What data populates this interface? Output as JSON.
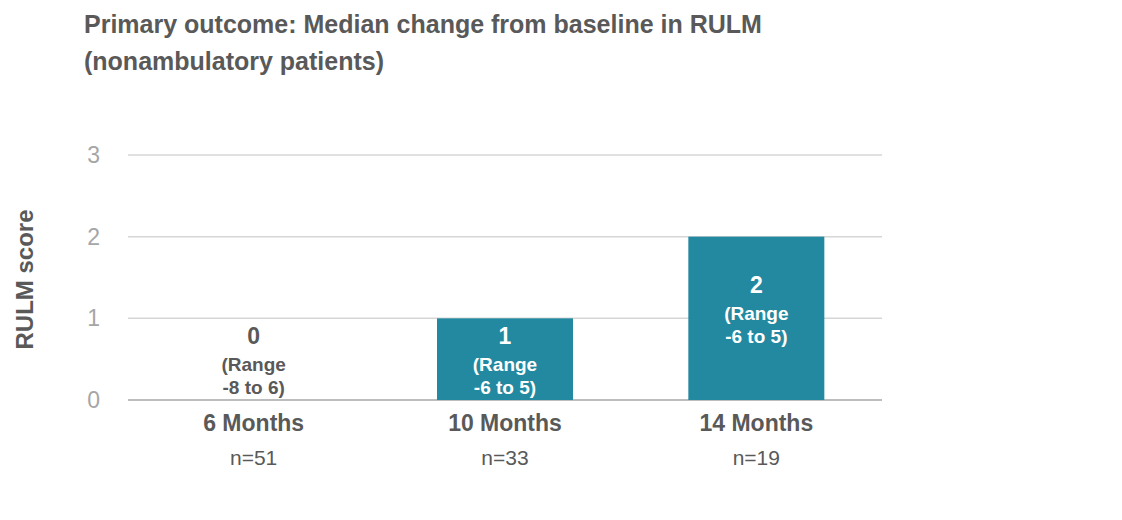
{
  "chart_data": {
    "type": "bar",
    "title": "Primary outcome: Median change from baseline in RULM",
    "subtitle": "(nonambulatory patients)",
    "y_label": "RULM score",
    "categories": [
      "6 Months",
      "10 Months",
      "14 Months"
    ],
    "n_labels": [
      "n=51",
      "n=33",
      "n=19"
    ],
    "values": [
      0,
      1,
      2
    ],
    "range_labels": [
      "(Range -8 to 6)",
      "(Range -6 to 5)",
      "(Range -6 to 5)"
    ],
    "color": "#2389a0",
    "ylim": [
      0,
      3
    ],
    "yticks": [
      0,
      1,
      2,
      3
    ],
    "grid": true,
    "data_labels": true
  }
}
